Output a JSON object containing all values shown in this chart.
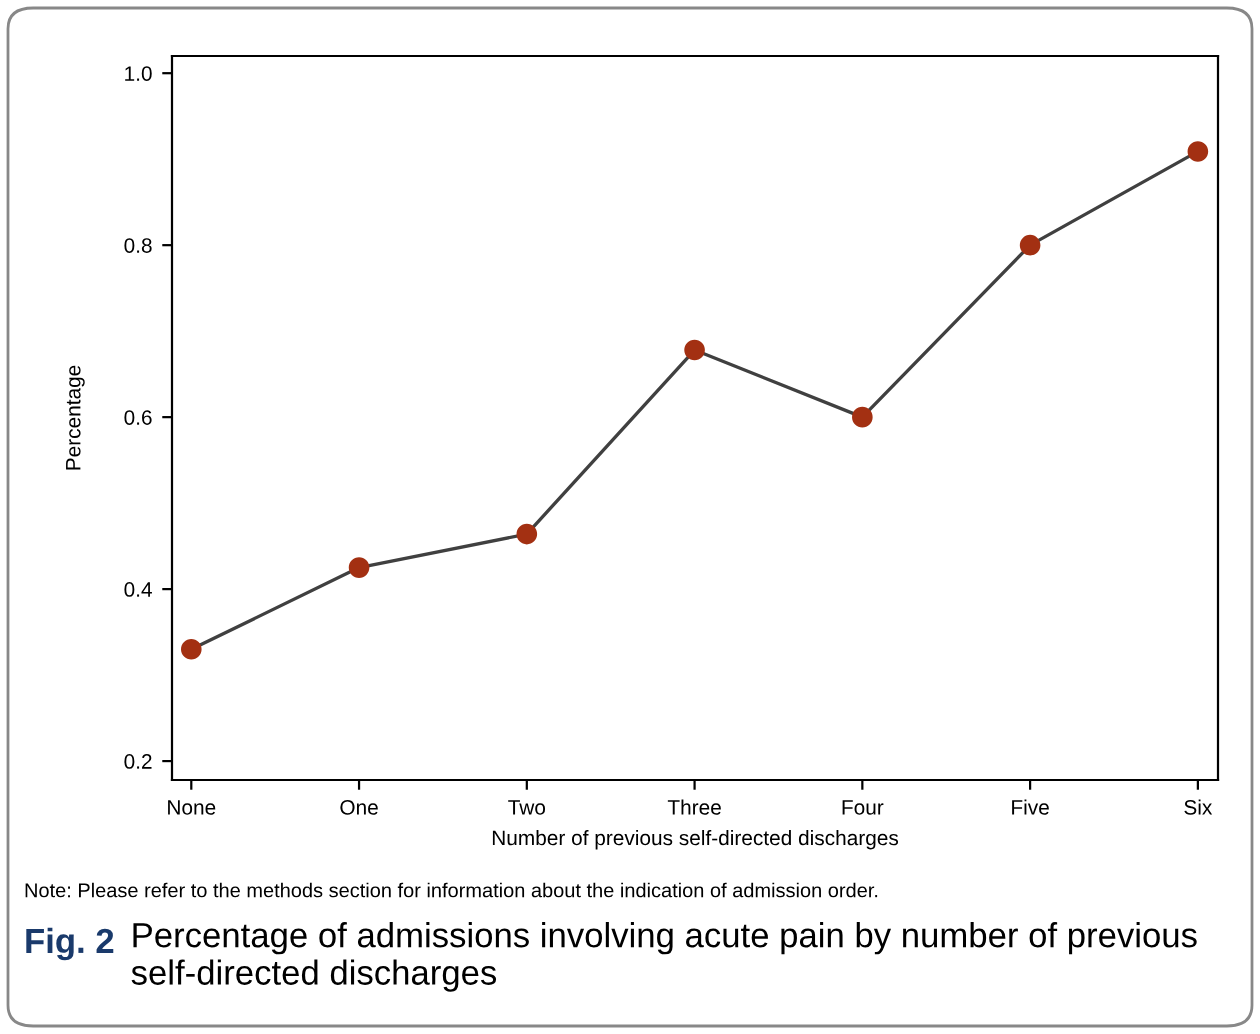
{
  "chart_data": {
    "type": "line",
    "xlabel": "Number of previous self-directed discharges",
    "ylabel": "Percentage",
    "categories": [
      "None",
      "One",
      "Two",
      "Three",
      "Four",
      "Five",
      "Six"
    ],
    "series": [
      {
        "color": "#a33012",
        "values": [
          0.33,
          0.425,
          0.464,
          0.678,
          0.6,
          0.8,
          0.909
        ]
      }
    ],
    "ylim": [
      0.178,
      1.02
    ],
    "yticks": [
      0.2,
      0.4,
      0.6,
      0.8,
      {
        "value": 1.0,
        "label": "1.0"
      }
    ],
    "marker": "circle",
    "line_style": "solid",
    "grid": false,
    "legend": false,
    "annotations": [
      "Note: Please refer to the methods section for information about the indication of admission order.",
      "Fig. 2",
      "Percentage of admissions involving acute pain by number of previous self-directed discharges"
    ]
  }
}
